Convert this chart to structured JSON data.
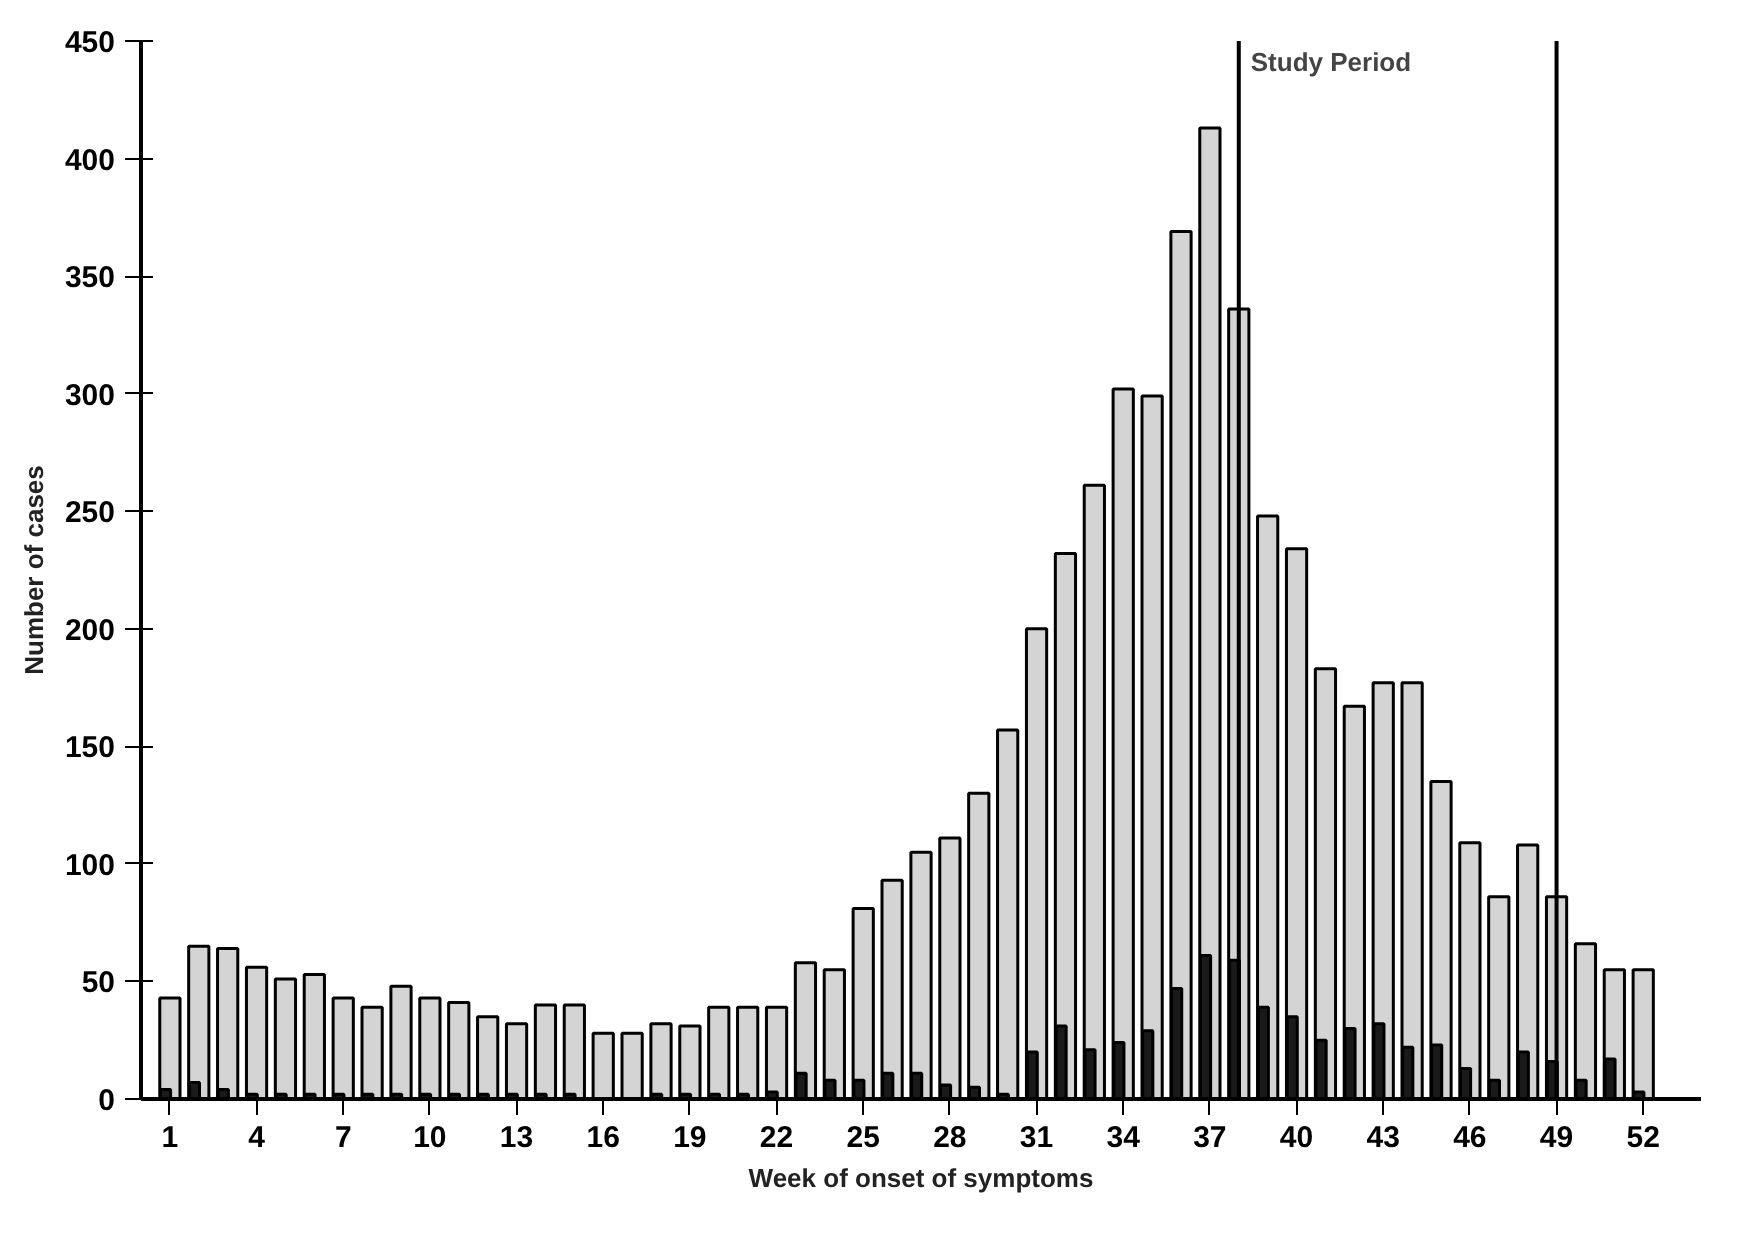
{
  "chart_data": {
    "type": "bar",
    "xlabel": "Week of onset of symptoms",
    "ylabel": "Number of cases",
    "x": [
      1,
      2,
      3,
      4,
      5,
      6,
      7,
      8,
      9,
      10,
      11,
      12,
      13,
      14,
      15,
      16,
      17,
      18,
      19,
      20,
      21,
      22,
      23,
      24,
      25,
      26,
      27,
      28,
      29,
      30,
      31,
      32,
      33,
      34,
      35,
      36,
      37,
      38,
      39,
      40,
      41,
      42,
      43,
      44,
      45,
      46,
      47,
      48,
      49,
      50,
      51,
      52
    ],
    "series": [
      {
        "color": "#d4d4d4",
        "values": [
          43,
          65,
          64,
          56,
          51,
          53,
          43,
          39,
          48,
          43,
          41,
          35,
          32,
          40,
          40,
          28,
          28,
          32,
          31,
          39,
          39,
          39,
          58,
          55,
          81,
          93,
          105,
          111,
          130,
          157,
          200,
          232,
          261,
          302,
          299,
          369,
          413,
          336,
          248,
          234,
          183,
          167,
          177,
          177,
          135,
          109,
          86,
          108,
          86,
          66,
          55,
          55
        ]
      },
      {
        "color": "#1a1a1a",
        "values": [
          4,
          7,
          4,
          2,
          2,
          2,
          2,
          2,
          2,
          2,
          2,
          2,
          2,
          2,
          2,
          null,
          null,
          2,
          2,
          2,
          2,
          3,
          11,
          8,
          8,
          11,
          11,
          6,
          5,
          2,
          20,
          31,
          21,
          24,
          29,
          47,
          61,
          59,
          39,
          35,
          25,
          30,
          32,
          22,
          23,
          13,
          8,
          20,
          16,
          8,
          17,
          3
        ]
      }
    ],
    "xlim": [
      0,
      54
    ],
    "xticks": [
      1,
      4,
      7,
      10,
      13,
      16,
      19,
      22,
      25,
      28,
      31,
      34,
      37,
      40,
      43,
      46,
      49,
      52
    ],
    "ylim": [
      0,
      450
    ],
    "yticks": [
      0,
      50,
      100,
      150,
      200,
      250,
      300,
      350,
      400,
      450
    ],
    "ref_lines": [
      {
        "axis": "x",
        "value": 38,
        "label": "Study Period",
        "color": "#000000"
      },
      {
        "axis": "x",
        "value": 49,
        "label": null,
        "color": "#000000"
      }
    ],
    "grid": false
  }
}
